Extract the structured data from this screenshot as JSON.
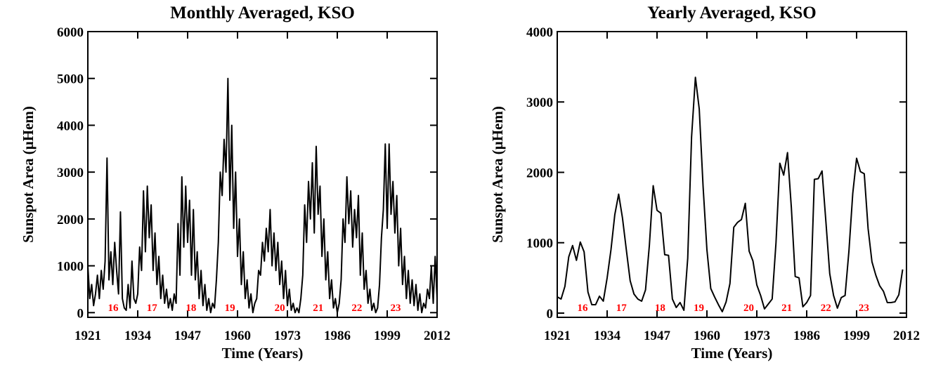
{
  "chart_data": [
    {
      "type": "line",
      "title": "Monthly Averaged, KSO",
      "xlabel": "Time (Years)",
      "ylabel": "Sunspot Area (μHem)",
      "xlim": [
        1921,
        2012
      ],
      "xticks": [
        1921,
        1934,
        1947,
        1960,
        1973,
        1986,
        1999,
        2012
      ],
      "ylim": [
        -100,
        6000
      ],
      "yticks": [
        0,
        1000,
        2000,
        3000,
        4000,
        5000,
        6000
      ],
      "annotations": [
        {
          "text": "16",
          "x": 1927.6
        },
        {
          "text": "17",
          "x": 1937.7
        },
        {
          "text": "18",
          "x": 1947.9
        },
        {
          "text": "19",
          "x": 1958
        },
        {
          "text": "20",
          "x": 1971
        },
        {
          "text": "21",
          "x": 1981
        },
        {
          "text": "22",
          "x": 1991.1
        },
        {
          "text": "23",
          "x": 2001.2
        }
      ],
      "annotation_color": "#ff0000",
      "x": [
        1921,
        1921.5,
        1922,
        1922.5,
        1923,
        1923.5,
        1924,
        1924.5,
        1925,
        1925.5,
        1926,
        1926.5,
        1927,
        1927.5,
        1928,
        1928.5,
        1929,
        1929.5,
        1930,
        1930.5,
        1931,
        1931.5,
        1932,
        1932.5,
        1933,
        1933.5,
        1934,
        1934.5,
        1935,
        1935.5,
        1936,
        1936.5,
        1937,
        1937.5,
        1938,
        1938.5,
        1939,
        1939.5,
        1940,
        1940.5,
        1941,
        1941.5,
        1942,
        1942.5,
        1943,
        1943.5,
        1944,
        1944.5,
        1945,
        1945.5,
        1946,
        1946.5,
        1947,
        1947.5,
        1948,
        1948.5,
        1949,
        1949.5,
        1950,
        1950.5,
        1951,
        1951.5,
        1952,
        1952.5,
        1953,
        1953.5,
        1954,
        1954.5,
        1955,
        1955.5,
        1956,
        1956.5,
        1957,
        1957.5,
        1958,
        1958.5,
        1959,
        1959.5,
        1960,
        1960.5,
        1961,
        1961.5,
        1962,
        1962.5,
        1963,
        1963.5,
        1964,
        1964.5,
        1965,
        1965.5,
        1966,
        1966.5,
        1967,
        1967.5,
        1968,
        1968.5,
        1969,
        1969.5,
        1970,
        1970.5,
        1971,
        1971.5,
        1972,
        1972.5,
        1973,
        1973.5,
        1974,
        1974.5,
        1975,
        1975.5,
        1976,
        1976.5,
        1977,
        1977.5,
        1978,
        1978.5,
        1979,
        1979.5,
        1980,
        1980.5,
        1981,
        1981.5,
        1982,
        1982.5,
        1983,
        1983.5,
        1984,
        1984.5,
        1985,
        1985.5,
        1986,
        1986.5,
        1987,
        1987.5,
        1988,
        1988.5,
        1989,
        1989.5,
        1990,
        1990.5,
        1991,
        1991.5,
        1992,
        1992.5,
        1993,
        1993.5,
        1994,
        1994.5,
        1995,
        1995.5,
        1996,
        1996.5,
        1997,
        1997.5,
        1998,
        1998.5,
        1999,
        1999.5,
        2000,
        2000.5,
        2001,
        2001.5,
        2002,
        2002.5,
        2003,
        2003.5,
        2004,
        2004.5,
        2005,
        2005.5,
        2006,
        2006.5,
        2007,
        2007.5,
        2008,
        2008.5,
        2009,
        2009.5,
        2010,
        2010.5,
        2011,
        2011.5,
        2012
      ],
      "series": [
        {
          "name": "Monthly",
          "color": "#000000",
          "values": [
            1000,
            300,
            600,
            150,
            400,
            800,
            300,
            900,
            500,
            1100,
            3300,
            700,
            1300,
            600,
            1500,
            900,
            400,
            2150,
            300,
            100,
            50,
            600,
            100,
            1100,
            300,
            200,
            400,
            1400,
            900,
            2600,
            1300,
            2700,
            1600,
            2300,
            900,
            1700,
            600,
            1200,
            300,
            800,
            200,
            500,
            100,
            300,
            50,
            400,
            200,
            1900,
            800,
            2900,
            1400,
            2700,
            1500,
            2400,
            800,
            2200,
            700,
            1300,
            300,
            900,
            150,
            600,
            50,
            300,
            0,
            200,
            100,
            700,
            1500,
            3000,
            2500,
            3700,
            3000,
            5000,
            2400,
            4000,
            1800,
            3000,
            1200,
            2000,
            600,
            1300,
            300,
            700,
            100,
            400,
            0,
            200,
            300,
            900,
            800,
            1500,
            1100,
            1800,
            1300,
            2200,
            1000,
            1700,
            900,
            1500,
            600,
            1100,
            300,
            900,
            150,
            500,
            50,
            200,
            0,
            100,
            0,
            300,
            800,
            2300,
            1500,
            2800,
            2000,
            3200,
            1700,
            3550,
            2100,
            2700,
            1200,
            2000,
            700,
            1300,
            300,
            700,
            100,
            300,
            0,
            200,
            700,
            2000,
            1500,
            2900,
            1900,
            2600,
            1400,
            2200,
            1600,
            2500,
            800,
            1700,
            500,
            900,
            200,
            500,
            50,
            200,
            0,
            100,
            600,
            1600,
            2200,
            3600,
            1800,
            3600,
            2100,
            2800,
            1700,
            2500,
            1000,
            1800,
            600,
            1200,
            300,
            900,
            200,
            700,
            150,
            600,
            50,
            400,
            0,
            200,
            100,
            500,
            300,
            1000,
            200,
            1200,
            300
          ]
        }
      ]
    },
    {
      "type": "line",
      "title": "Yearly Averaged, KSO",
      "xlabel": "Time (Years)",
      "ylabel": "Sunspot Area (μHem)",
      "xlim": [
        1921,
        2012
      ],
      "xticks": [
        1921,
        1934,
        1947,
        1960,
        1973,
        1986,
        1999,
        2012
      ],
      "ylim": [
        -60,
        4000
      ],
      "yticks": [
        0,
        1000,
        2000,
        3000,
        4000
      ],
      "annotations": [
        {
          "text": "16",
          "x": 1927.6
        },
        {
          "text": "17",
          "x": 1937.7
        },
        {
          "text": "18",
          "x": 1947.8
        },
        {
          "text": "19",
          "x": 1957.9
        },
        {
          "text": "20",
          "x": 1970.9
        },
        {
          "text": "21",
          "x": 1980.8
        },
        {
          "text": "22",
          "x": 1991
        },
        {
          "text": "23",
          "x": 2000.9
        }
      ],
      "annotation_color": "#ff0000",
      "x": [
        1921,
        1922,
        1923,
        1924,
        1925,
        1926,
        1927,
        1928,
        1929,
        1930,
        1931,
        1932,
        1933,
        1934,
        1935,
        1936,
        1937,
        1938,
        1939,
        1940,
        1941,
        1942,
        1943,
        1944,
        1945,
        1946,
        1947,
        1948,
        1949,
        1950,
        1951,
        1952,
        1953,
        1954,
        1955,
        1956,
        1957,
        1958,
        1959,
        1960,
        1961,
        1962,
        1963,
        1964,
        1965,
        1966,
        1967,
        1968,
        1969,
        1970,
        1971,
        1972,
        1973,
        1974,
        1975,
        1976,
        1977,
        1978,
        1979,
        1980,
        1981,
        1982,
        1983,
        1984,
        1985,
        1986,
        1987,
        1988,
        1989,
        1990,
        1991,
        1992,
        1993,
        1994,
        1995,
        1996,
        1997,
        1998,
        1999,
        2000,
        2001,
        2002,
        2003,
        2004,
        2005,
        2006,
        2007,
        2008,
        2009,
        2010,
        2011
      ],
      "series": [
        {
          "name": "Yearly",
          "color": "#000000",
          "values": [
            230,
            200,
            380,
            800,
            960,
            750,
            1010,
            870,
            300,
            120,
            120,
            240,
            170,
            500,
            900,
            1400,
            1690,
            1350,
            900,
            460,
            270,
            200,
            170,
            330,
            960,
            1810,
            1460,
            1420,
            830,
            820,
            200,
            80,
            150,
            40,
            780,
            2500,
            3350,
            2900,
            1800,
            900,
            350,
            230,
            120,
            20,
            160,
            420,
            1220,
            1290,
            1330,
            1560,
            880,
            740,
            400,
            250,
            60,
            130,
            200,
            1000,
            2130,
            1960,
            2280,
            1500,
            520,
            500,
            90,
            150,
            250,
            1900,
            1910,
            2020,
            1300,
            560,
            250,
            70,
            220,
            250,
            880,
            1700,
            2200,
            2010,
            1980,
            1200,
            730,
            540,
            390,
            310,
            150,
            150,
            160,
            260,
            620
          ]
        }
      ]
    }
  ]
}
